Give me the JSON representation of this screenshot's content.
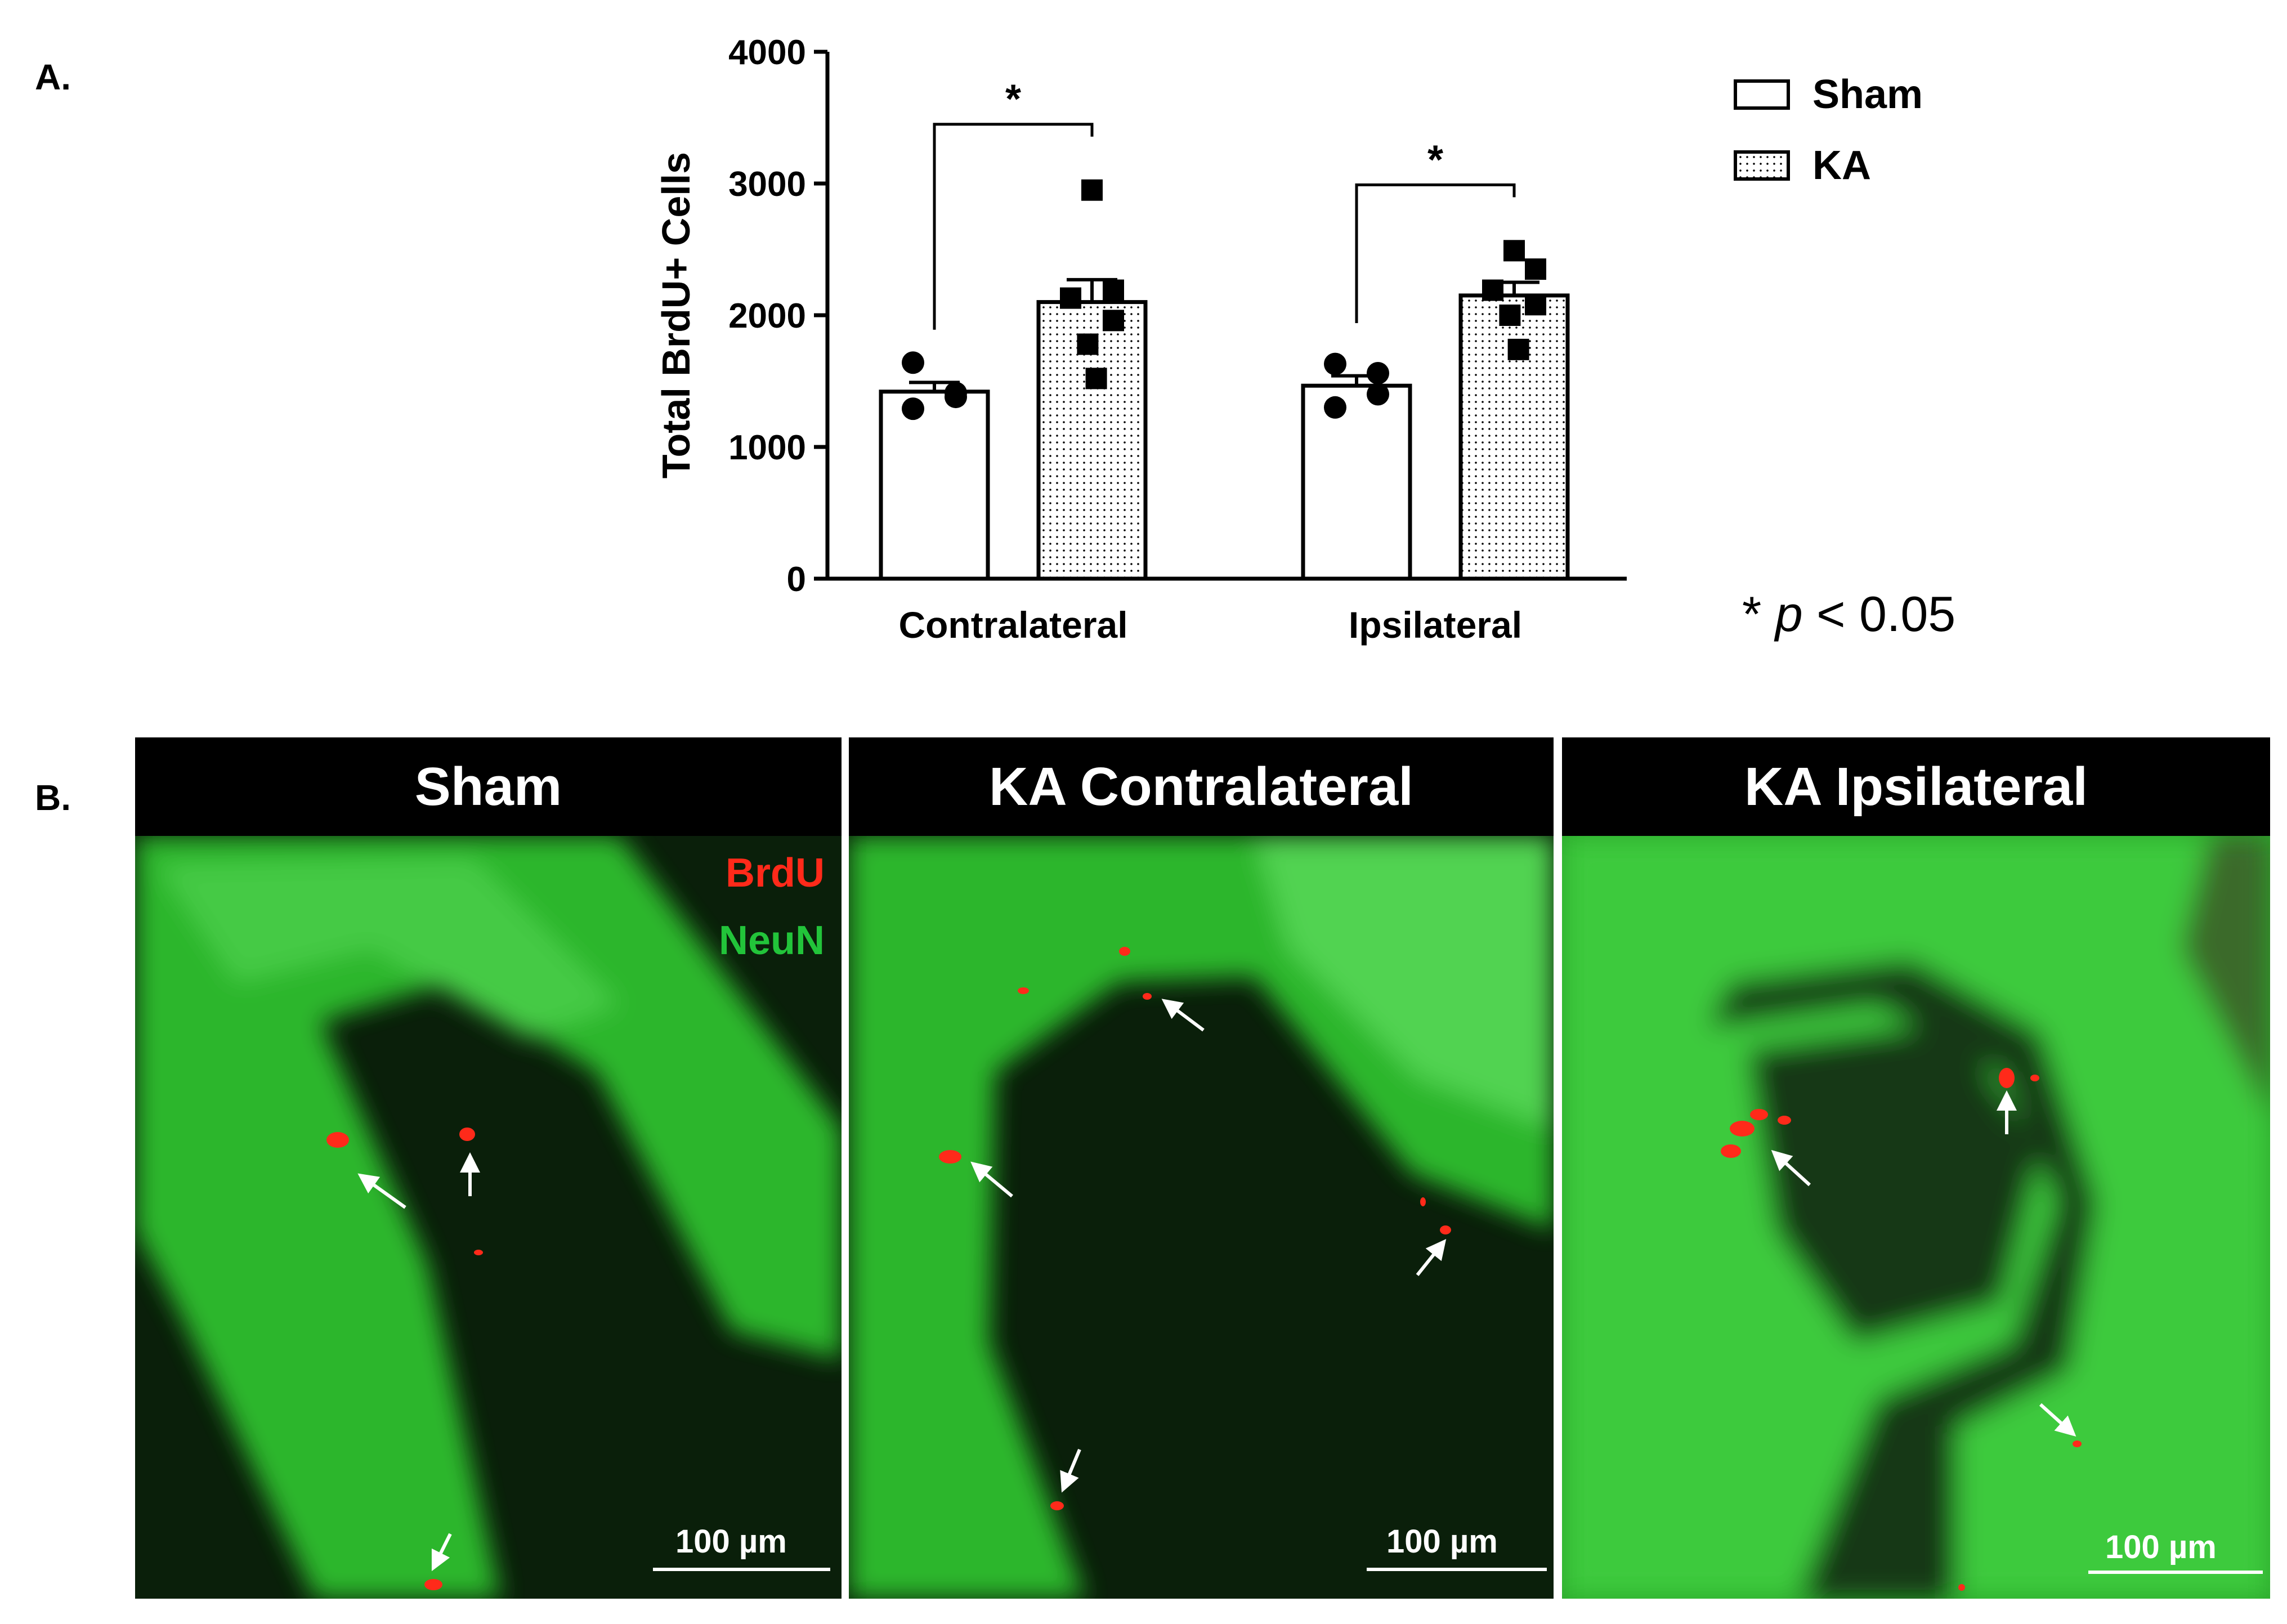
{
  "panel_labels": {
    "a": "A.",
    "b": "B."
  },
  "chart_data": {
    "type": "bar",
    "ylabel": "Total BrdU+ Cells",
    "xlabel": "",
    "ylim": [
      0,
      4000
    ],
    "yticks": [
      "0",
      "1000",
      "2000",
      "3000",
      "4000"
    ],
    "categories": [
      "Contralateral",
      "Ipsilateral"
    ],
    "series": [
      {
        "name": "Sham",
        "fill": "open",
        "values": [
          1420,
          1465
        ],
        "sem": [
          70,
          75
        ],
        "points": [
          [
            1640,
            1380,
            1290,
            1410
          ],
          [
            1630,
            1560,
            1300,
            1400
          ]
        ]
      },
      {
        "name": "KA",
        "fill": "dotted",
        "values": [
          2100,
          2150
        ],
        "sem": [
          170,
          100
        ],
        "points": [
          [
            2950,
            2190,
            2130,
            1960,
            1780,
            1520
          ],
          [
            2490,
            2350,
            2190,
            2080,
            2000,
            1740
          ]
        ]
      }
    ],
    "significance": [
      {
        "category": "Contralateral",
        "label": "*"
      },
      {
        "category": "Ipsilateral",
        "label": "*"
      }
    ],
    "legend_position": "top-right",
    "grid": false
  },
  "legend": {
    "sham": "Sham",
    "ka": "KA"
  },
  "p_note": {
    "prefix": "* ",
    "p": "p",
    "suffix": " < 0.05"
  },
  "micrographs": [
    {
      "title": "Sham",
      "scale": "100 µm",
      "stain_brdu": "BrdU",
      "stain_neun": "NeuN"
    },
    {
      "title": "KA Contralateral",
      "scale": "100 µm"
    },
    {
      "title": "KA Ipsilateral",
      "scale": "100 µm"
    }
  ],
  "colors": {
    "brdu": "#ff2a1a",
    "neun": "#22c43a",
    "header": "#000000"
  }
}
